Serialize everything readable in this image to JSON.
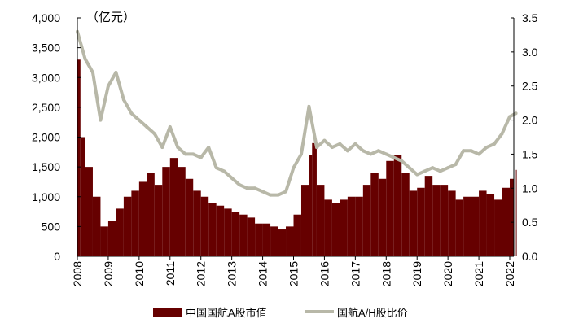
{
  "chart_data": {
    "type": "bar+line",
    "unit_label": "（亿元）",
    "left_axis": {
      "ylim": [
        0,
        4000
      ],
      "ticks": [
        "0",
        "500",
        "1,000",
        "1,500",
        "2,000",
        "2,500",
        "3,000",
        "3,500",
        "4,000"
      ]
    },
    "right_axis": {
      "ylim": [
        0,
        3.5
      ],
      "ticks": [
        "0.0",
        "0.5",
        "1.0",
        "1.5",
        "2.0",
        "2.5",
        "3.0",
        "3.5"
      ]
    },
    "x_ticks": [
      "2008",
      "2009",
      "2010",
      "2011",
      "2012",
      "2013",
      "2014",
      "2015",
      "2016",
      "2017",
      "2018",
      "2019",
      "2020",
      "2021",
      "2022"
    ],
    "xlim": [
      2008,
      2022.2
    ],
    "legend_position": "bottom",
    "series": [
      {
        "name": "中国国航A股市值",
        "type": "bar",
        "axis": "left",
        "color": "#660000",
        "x": [
          2008.0,
          2008.1,
          2008.25,
          2008.5,
          2008.75,
          2009.0,
          2009.25,
          2009.5,
          2009.75,
          2010.0,
          2010.25,
          2010.5,
          2010.75,
          2011.0,
          2011.25,
          2011.5,
          2011.75,
          2012.0,
          2012.25,
          2012.5,
          2012.75,
          2013.0,
          2013.25,
          2013.5,
          2013.75,
          2014.0,
          2014.25,
          2014.5,
          2014.75,
          2015.0,
          2015.25,
          2015.5,
          2015.6,
          2015.75,
          2016.0,
          2016.25,
          2016.5,
          2016.75,
          2017.0,
          2017.25,
          2017.5,
          2017.75,
          2018.0,
          2018.25,
          2018.5,
          2018.75,
          2019.0,
          2019.25,
          2019.5,
          2019.75,
          2020.0,
          2020.25,
          2020.5,
          2020.75,
          2021.0,
          2021.25,
          2021.5,
          2021.75,
          2022.0,
          2022.2
        ],
        "values": [
          3300,
          2000,
          1500,
          1000,
          500,
          600,
          800,
          1000,
          1100,
          1250,
          1400,
          1200,
          1500,
          1650,
          1500,
          1300,
          1100,
          1000,
          900,
          850,
          800,
          750,
          700,
          650,
          550,
          550,
          500,
          450,
          500,
          700,
          1200,
          1700,
          1900,
          1200,
          950,
          900,
          950,
          1000,
          1000,
          1200,
          1400,
          1300,
          1600,
          1700,
          1400,
          1100,
          1150,
          1350,
          1200,
          1200,
          1100,
          950,
          1000,
          1000,
          1100,
          1050,
          950,
          1150,
          1300,
          1450
        ]
      },
      {
        "name": "国航A/H股比价",
        "type": "line",
        "axis": "right",
        "color": "#b8b8a8",
        "x": [
          2008.0,
          2008.25,
          2008.5,
          2008.75,
          2009.0,
          2009.25,
          2009.5,
          2009.75,
          2010.0,
          2010.25,
          2010.5,
          2010.75,
          2011.0,
          2011.25,
          2011.5,
          2011.75,
          2012.0,
          2012.25,
          2012.5,
          2012.75,
          2013.0,
          2013.25,
          2013.5,
          2013.75,
          2014.0,
          2014.25,
          2014.5,
          2014.75,
          2015.0,
          2015.25,
          2015.5,
          2015.75,
          2016.0,
          2016.25,
          2016.5,
          2016.75,
          2017.0,
          2017.25,
          2017.5,
          2017.75,
          2018.0,
          2018.25,
          2018.5,
          2018.75,
          2019.0,
          2019.25,
          2019.5,
          2019.75,
          2020.0,
          2020.25,
          2020.5,
          2020.75,
          2021.0,
          2021.25,
          2021.5,
          2021.75,
          2022.0,
          2022.2
        ],
        "values": [
          3.3,
          2.9,
          2.7,
          2.0,
          2.5,
          2.7,
          2.3,
          2.1,
          2.0,
          1.9,
          1.8,
          1.6,
          1.9,
          1.6,
          1.5,
          1.5,
          1.45,
          1.6,
          1.3,
          1.25,
          1.15,
          1.05,
          1.0,
          1.0,
          0.95,
          0.9,
          0.9,
          0.95,
          1.3,
          1.5,
          2.2,
          1.6,
          1.7,
          1.6,
          1.65,
          1.55,
          1.65,
          1.55,
          1.5,
          1.55,
          1.5,
          1.45,
          1.4,
          1.3,
          1.2,
          1.25,
          1.3,
          1.25,
          1.3,
          1.35,
          1.55,
          1.55,
          1.5,
          1.6,
          1.65,
          1.8,
          2.05,
          2.1
        ]
      }
    ]
  }
}
